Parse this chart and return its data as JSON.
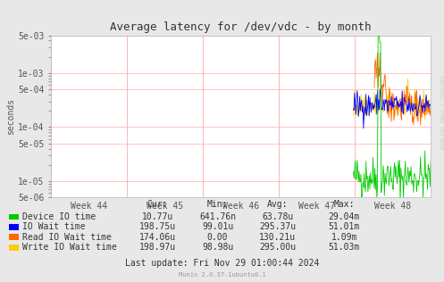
{
  "title": "Average latency for /dev/vdc - by month",
  "ylabel": "seconds",
  "background_color": "#e8e8e8",
  "plot_background_color": "#ffffff",
  "grid_color": "#ffaaaa",
  "vline_color": "#ffaaaa",
  "ylim_min": 5e-06,
  "ylim_max": 0.005,
  "week_labels": [
    "Week 44",
    "Week 45",
    "Week 46",
    "Week 47",
    "Week 48"
  ],
  "legend_entries": [
    {
      "label": "Device IO time",
      "color": "#00cc00"
    },
    {
      "label": "IO Wait time",
      "color": "#0000ff"
    },
    {
      "label": "Read IO Wait time",
      "color": "#ff6600"
    },
    {
      "label": "Write IO Wait time",
      "color": "#ffcc00"
    }
  ],
  "stats_header": [
    "Cur:",
    "Min:",
    "Avg:",
    "Max:"
  ],
  "stats": [
    [
      "10.77u",
      "641.76n",
      "63.78u",
      "29.04m"
    ],
    [
      "198.75u",
      "99.01u",
      "295.37u",
      "51.01m"
    ],
    [
      "174.06u",
      "0.00",
      "130.21u",
      "1.09m"
    ],
    [
      "198.97u",
      "98.98u",
      "295.00u",
      "51.03m"
    ]
  ],
  "last_update": "Last update: Fri Nov 29 01:00:44 2024",
  "munin_version": "Munin 2.0.37-1ubuntu0.1",
  "rrdtool_text": "RRDTOOL / TOBI OETIKER",
  "title_fontsize": 9,
  "axis_fontsize": 7,
  "legend_fontsize": 7,
  "stats_fontsize": 7
}
